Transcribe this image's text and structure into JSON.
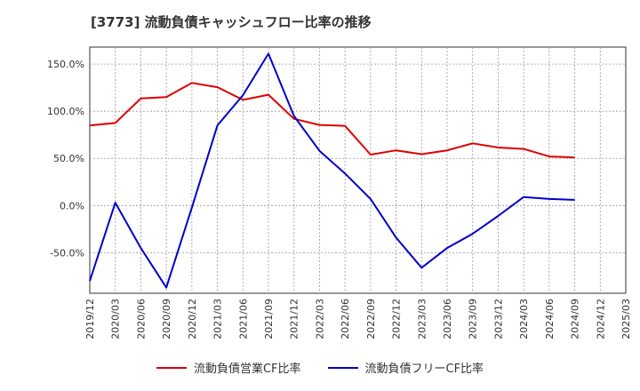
{
  "chart_data": {
    "type": "line",
    "title": "[3773]  流動負債キャッシュフロー比率の推移",
    "x": [
      "2019/12",
      "2020/03",
      "2020/06",
      "2020/09",
      "2020/12",
      "2021/03",
      "2021/06",
      "2021/09",
      "2021/12",
      "2022/03",
      "2022/06",
      "2022/09",
      "2022/12",
      "2023/03",
      "2023/06",
      "2023/09",
      "2023/12",
      "2024/03",
      "2024/06",
      "2024/09",
      "2024/12",
      "2025/03"
    ],
    "series": [
      {
        "name": "流動負債営業CF比率",
        "color": "#dd0000",
        "values": [
          85,
          87.5,
          113.5,
          115,
          130,
          125.5,
          112,
          117.5,
          92,
          85.5,
          84.5,
          54,
          58.5,
          54.5,
          58.5,
          66,
          61.5,
          60,
          52,
          51,
          null,
          null
        ]
      },
      {
        "name": "流動負債フリーCF比率",
        "color": "#0000cc",
        "values": [
          -80,
          3,
          -45,
          -87,
          -2,
          85,
          117,
          161,
          95,
          58,
          34,
          7,
          -34,
          -66,
          -45,
          -30,
          -11,
          9,
          7,
          6,
          null,
          null
        ]
      }
    ],
    "yticks": [
      -50,
      0,
      50,
      100,
      150
    ],
    "ytick_labels": [
      "-50.0%",
      "0.0%",
      "50.0%",
      "100.0%",
      "150.0%"
    ],
    "ylim": [
      -93,
      168
    ],
    "grid": true,
    "legend_position": "bottom"
  }
}
